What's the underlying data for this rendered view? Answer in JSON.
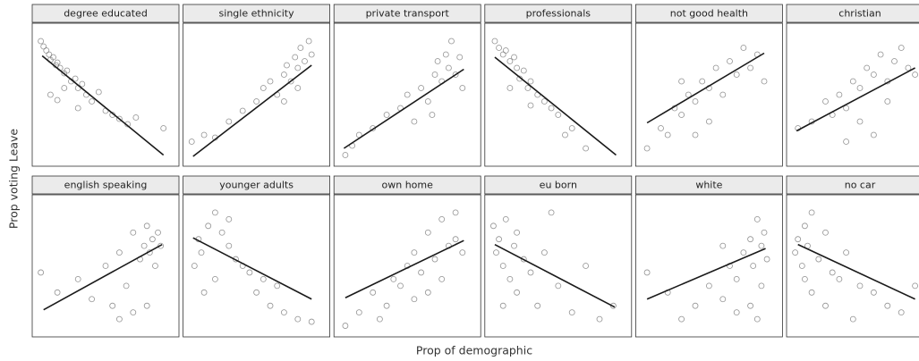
{
  "chart_data": {
    "type": "scatter",
    "xlabel": "Prop of demographic",
    "ylabel": "Prop voting Leave",
    "xlim": [
      0,
      1
    ],
    "ylim": [
      0,
      1
    ],
    "point_color": "#6f6f6f",
    "line_color": "#1a1a1a",
    "panels": [
      {
        "title": "degree educated",
        "x": [
          0.03,
          0.05,
          0.07,
          0.09,
          0.1,
          0.12,
          0.14,
          0.15,
          0.17,
          0.2,
          0.22,
          0.25,
          0.28,
          0.3,
          0.33,
          0.36,
          0.4,
          0.45,
          0.5,
          0.55,
          0.6,
          0.66,
          0.72,
          0.1,
          0.15,
          0.2,
          0.3,
          0.92
        ],
        "y": [
          0.9,
          0.86,
          0.83,
          0.8,
          0.76,
          0.78,
          0.72,
          0.74,
          0.7,
          0.66,
          0.68,
          0.6,
          0.62,
          0.55,
          0.58,
          0.5,
          0.45,
          0.52,
          0.38,
          0.35,
          0.32,
          0.28,
          0.33,
          0.5,
          0.46,
          0.55,
          0.4,
          0.25
        ],
        "fit": {
          "x": [
            0.04,
            0.92
          ],
          "y": [
            0.79,
            0.05
          ]
        }
      },
      {
        "title": "single ethnicity",
        "x": [
          0.03,
          0.12,
          0.2,
          0.3,
          0.4,
          0.5,
          0.55,
          0.6,
          0.65,
          0.7,
          0.72,
          0.75,
          0.78,
          0.8,
          0.82,
          0.85,
          0.88,
          0.9,
          0.7,
          0.8
        ],
        "y": [
          0.15,
          0.2,
          0.18,
          0.3,
          0.38,
          0.45,
          0.55,
          0.6,
          0.5,
          0.65,
          0.72,
          0.6,
          0.78,
          0.7,
          0.85,
          0.75,
          0.9,
          0.8,
          0.45,
          0.55
        ],
        "fit": {
          "x": [
            0.04,
            0.9
          ],
          "y": [
            0.04,
            0.72
          ]
        }
      },
      {
        "title": "private transport",
        "x": [
          0.05,
          0.1,
          0.15,
          0.25,
          0.35,
          0.45,
          0.5,
          0.55,
          0.6,
          0.65,
          0.7,
          0.72,
          0.75,
          0.78,
          0.8,
          0.82,
          0.85,
          0.88,
          0.68,
          0.9
        ],
        "y": [
          0.05,
          0.12,
          0.2,
          0.25,
          0.35,
          0.4,
          0.5,
          0.3,
          0.55,
          0.45,
          0.65,
          0.75,
          0.6,
          0.8,
          0.7,
          0.9,
          0.65,
          0.78,
          0.35,
          0.55
        ],
        "fit": {
          "x": [
            0.04,
            0.91
          ],
          "y": [
            0.1,
            0.69
          ]
        }
      },
      {
        "title": "professionals",
        "x": [
          0.04,
          0.07,
          0.1,
          0.12,
          0.15,
          0.18,
          0.2,
          0.22,
          0.25,
          0.28,
          0.3,
          0.35,
          0.4,
          0.45,
          0.5,
          0.55,
          0.6,
          0.7,
          0.3,
          0.15
        ],
        "y": [
          0.9,
          0.85,
          0.8,
          0.83,
          0.75,
          0.78,
          0.7,
          0.62,
          0.68,
          0.55,
          0.6,
          0.5,
          0.45,
          0.4,
          0.35,
          0.2,
          0.25,
          0.1,
          0.42,
          0.55
        ],
        "fit": {
          "x": [
            0.04,
            0.92
          ],
          "y": [
            0.78,
            0.05
          ]
        }
      },
      {
        "title": "not good health",
        "x": [
          0.05,
          0.15,
          0.2,
          0.25,
          0.3,
          0.35,
          0.4,
          0.45,
          0.5,
          0.55,
          0.6,
          0.65,
          0.7,
          0.75,
          0.8,
          0.85,
          0.9,
          0.4,
          0.5,
          0.3
        ],
        "y": [
          0.1,
          0.25,
          0.2,
          0.4,
          0.35,
          0.5,
          0.45,
          0.6,
          0.55,
          0.7,
          0.5,
          0.75,
          0.65,
          0.85,
          0.7,
          0.8,
          0.6,
          0.2,
          0.3,
          0.6
        ],
        "fit": {
          "x": [
            0.05,
            0.9
          ],
          "y": [
            0.29,
            0.81
          ]
        }
      },
      {
        "title": "christian",
        "x": [
          0.05,
          0.15,
          0.25,
          0.3,
          0.35,
          0.4,
          0.45,
          0.5,
          0.55,
          0.6,
          0.65,
          0.7,
          0.75,
          0.8,
          0.85,
          0.9,
          0.5,
          0.6,
          0.4,
          0.7
        ],
        "y": [
          0.25,
          0.3,
          0.45,
          0.35,
          0.5,
          0.4,
          0.6,
          0.55,
          0.7,
          0.65,
          0.8,
          0.6,
          0.75,
          0.85,
          0.7,
          0.65,
          0.3,
          0.2,
          0.15,
          0.45
        ],
        "fit": {
          "x": [
            0.04,
            0.9
          ],
          "y": [
            0.23,
            0.7
          ]
        }
      },
      {
        "title": "english speaking",
        "x": [
          0.03,
          0.15,
          0.3,
          0.4,
          0.5,
          0.55,
          0.6,
          0.65,
          0.7,
          0.75,
          0.78,
          0.8,
          0.82,
          0.84,
          0.86,
          0.88,
          0.9,
          0.6,
          0.7,
          0.8
        ],
        "y": [
          0.45,
          0.3,
          0.4,
          0.25,
          0.5,
          0.2,
          0.6,
          0.35,
          0.75,
          0.55,
          0.65,
          0.8,
          0.6,
          0.7,
          0.5,
          0.75,
          0.65,
          0.1,
          0.15,
          0.2
        ],
        "fit": {
          "x": [
            0.05,
            0.91
          ],
          "y": [
            0.17,
            0.66
          ]
        }
      },
      {
        "title": "younger adults",
        "x": [
          0.05,
          0.08,
          0.1,
          0.15,
          0.2,
          0.25,
          0.3,
          0.35,
          0.4,
          0.45,
          0.5,
          0.55,
          0.6,
          0.7,
          0.8,
          0.9,
          0.2,
          0.3,
          0.12,
          0.65
        ],
        "y": [
          0.5,
          0.7,
          0.6,
          0.8,
          0.9,
          0.75,
          0.65,
          0.55,
          0.5,
          0.45,
          0.3,
          0.4,
          0.2,
          0.15,
          0.1,
          0.08,
          0.4,
          0.85,
          0.3,
          0.35
        ],
        "fit": {
          "x": [
            0.04,
            0.9
          ],
          "y": [
            0.71,
            0.25
          ]
        }
      },
      {
        "title": "own home",
        "x": [
          0.05,
          0.15,
          0.25,
          0.35,
          0.4,
          0.45,
          0.5,
          0.55,
          0.6,
          0.65,
          0.7,
          0.75,
          0.8,
          0.85,
          0.9,
          0.55,
          0.65,
          0.75,
          0.3,
          0.85
        ],
        "y": [
          0.05,
          0.15,
          0.3,
          0.2,
          0.4,
          0.35,
          0.5,
          0.6,
          0.45,
          0.75,
          0.55,
          0.85,
          0.65,
          0.7,
          0.6,
          0.25,
          0.3,
          0.4,
          0.1,
          0.9
        ],
        "fit": {
          "x": [
            0.05,
            0.91
          ],
          "y": [
            0.26,
            0.69
          ]
        }
      },
      {
        "title": "eu born",
        "x": [
          0.03,
          0.05,
          0.07,
          0.1,
          0.12,
          0.15,
          0.18,
          0.2,
          0.25,
          0.3,
          0.35,
          0.4,
          0.5,
          0.6,
          0.7,
          0.8,
          0.9,
          0.1,
          0.2,
          0.45
        ],
        "y": [
          0.8,
          0.6,
          0.7,
          0.5,
          0.85,
          0.4,
          0.65,
          0.3,
          0.55,
          0.45,
          0.2,
          0.6,
          0.35,
          0.15,
          0.5,
          0.1,
          0.2,
          0.2,
          0.75,
          0.9
        ],
        "fit": {
          "x": [
            0.04,
            0.91
          ],
          "y": [
            0.66,
            0.19
          ]
        }
      },
      {
        "title": "white",
        "x": [
          0.05,
          0.2,
          0.3,
          0.4,
          0.5,
          0.6,
          0.65,
          0.7,
          0.75,
          0.8,
          0.82,
          0.85,
          0.88,
          0.9,
          0.92,
          0.8,
          0.7,
          0.85,
          0.88,
          0.6
        ],
        "y": [
          0.45,
          0.3,
          0.1,
          0.2,
          0.35,
          0.25,
          0.5,
          0.4,
          0.6,
          0.7,
          0.5,
          0.85,
          0.65,
          0.75,
          0.55,
          0.2,
          0.15,
          0.1,
          0.35,
          0.65
        ],
        "fit": {
          "x": [
            0.05,
            0.91
          ],
          "y": [
            0.25,
            0.63
          ]
        }
      },
      {
        "title": "no car",
        "x": [
          0.03,
          0.05,
          0.08,
          0.1,
          0.12,
          0.15,
          0.2,
          0.25,
          0.3,
          0.35,
          0.4,
          0.5,
          0.6,
          0.7,
          0.8,
          0.9,
          0.15,
          0.25,
          0.45,
          0.1
        ],
        "y": [
          0.6,
          0.7,
          0.5,
          0.8,
          0.65,
          0.9,
          0.55,
          0.75,
          0.45,
          0.4,
          0.6,
          0.35,
          0.3,
          0.2,
          0.15,
          0.35,
          0.3,
          0.2,
          0.1,
          0.4
        ],
        "fit": {
          "x": [
            0.05,
            0.9
          ],
          "y": [
            0.66,
            0.25
          ]
        }
      }
    ]
  }
}
